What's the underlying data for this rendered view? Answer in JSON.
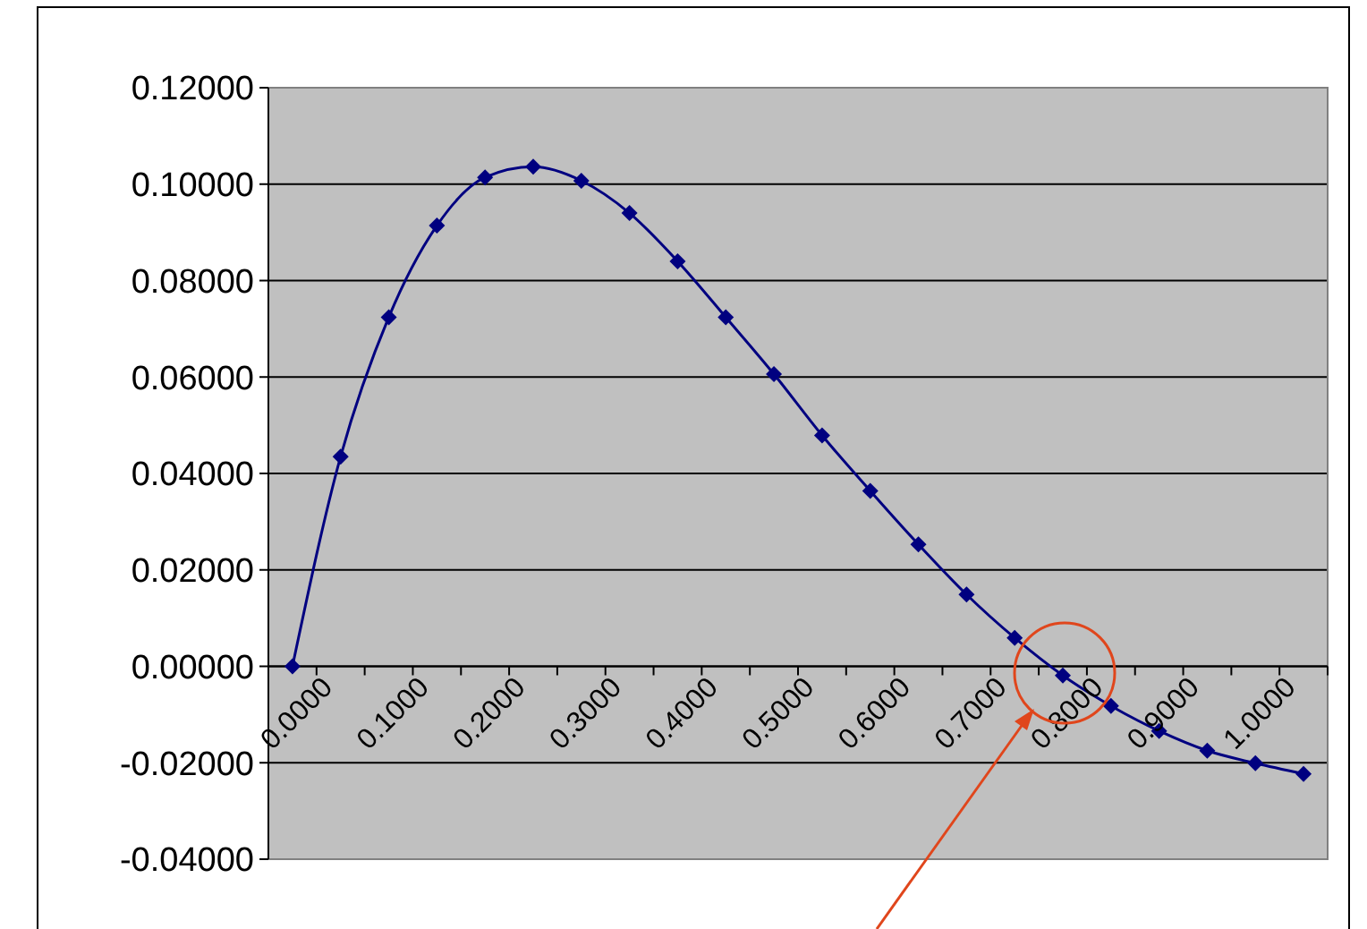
{
  "chart_data": {
    "type": "line",
    "categories": [
      "0.0000",
      null,
      "0.1000",
      null,
      "0.2000",
      null,
      "0.3000",
      null,
      "0.4000",
      null,
      "0.5000",
      null,
      "0.6000",
      null,
      "0.7000",
      null,
      "0.8000",
      null,
      "0.9000",
      null,
      "1.0000",
      null
    ],
    "series": [
      {
        "color": "#000080",
        "values": [
          0,
          0.0435,
          0.0724,
          0.0914,
          0.1014,
          0.1036,
          0.1007,
          0.094,
          0.084,
          0.0724,
          0.0606,
          0.0479,
          0.0364,
          0.0253,
          0.0149,
          0.0059,
          -0.0019,
          -0.0082,
          -0.0134,
          -0.0175,
          -0.0201,
          -0.0223
        ]
      }
    ],
    "ylim": [
      -0.04,
      0.12
    ],
    "yticks": [
      {
        "value": -0.04,
        "label": "-0.04000"
      },
      {
        "value": -0.02,
        "label": "-0.02000"
      },
      {
        "value": 0,
        "label": "0.00000"
      },
      {
        "value": 0.02,
        "label": "0.02000"
      },
      {
        "value": 0.04,
        "label": "0.04000"
      },
      {
        "value": 0.06,
        "label": "0.06000"
      },
      {
        "value": 0.08,
        "label": "0.08000"
      },
      {
        "value": 0.1,
        "label": "0.10000"
      },
      {
        "value": 0.12,
        "label": "0.12000"
      }
    ],
    "grid": "y",
    "marker": "diamond",
    "line_style": "solid"
  }
}
